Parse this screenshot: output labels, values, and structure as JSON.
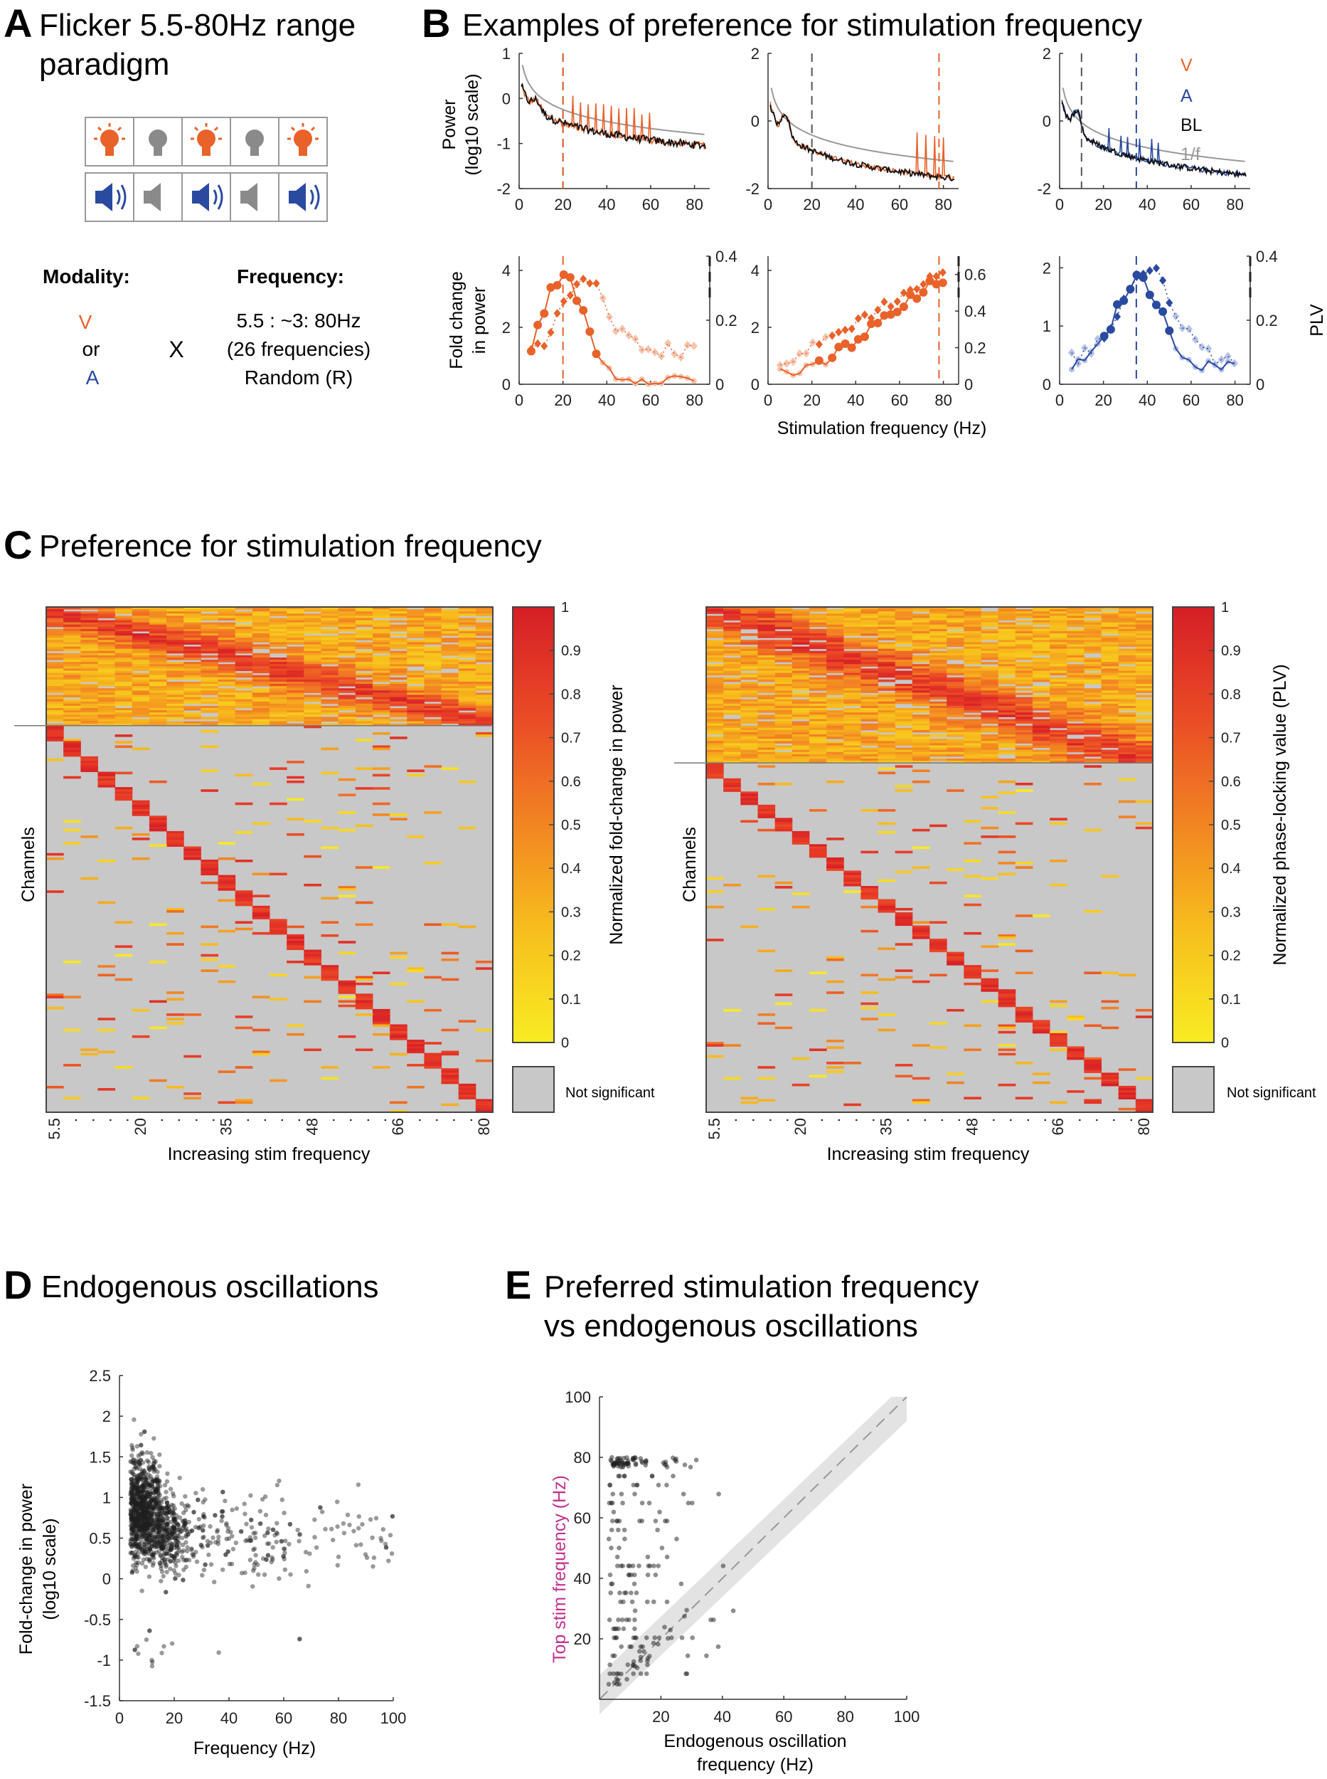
{
  "colors": {
    "visual": "#e8622a",
    "auditory": "#2a4aa0",
    "baseline": "#111111",
    "one_over_f": "#999999",
    "not_significant": "#c8c8c8",
    "magenta": "#c2328e"
  },
  "panelA": {
    "letter": "A",
    "title_line1": "Flicker 5.5-80Hz range",
    "title_line2": "paradigm",
    "modality_label": "Modality:",
    "frequency_label": "Frequency:",
    "modality_v": "V",
    "modality_or": "or",
    "modality_a": "A",
    "times": "X",
    "freq_line1": "5.5 : ~3: 80Hz",
    "freq_line2": "(26 frequencies)",
    "freq_line3": "Random (R)"
  },
  "panelB": {
    "letter": "B",
    "title": "Examples of preference for stimulation frequency",
    "ylabel_top_line1": "Power",
    "ylabel_top_line2": "(log10 scale)",
    "ylabel_bottom_line1": "Fold change",
    "ylabel_bottom_line2": "in power",
    "ylabel_right": "PLV",
    "xlabel": "Stimulation frequency (Hz)",
    "legend": [
      "V",
      "A",
      "BL",
      "1/f"
    ],
    "top_plots": [
      {
        "ylim": [
          -2,
          1
        ],
        "yticks": [
          "1",
          "0",
          "-1",
          "-2"
        ],
        "xticks": [
          "0",
          "20",
          "40",
          "60",
          "80"
        ]
      },
      {
        "ylim": [
          -2,
          2
        ],
        "yticks": [
          "2",
          "0",
          "-2"
        ],
        "xticks": [
          "0",
          "20",
          "40",
          "60",
          "80"
        ]
      },
      {
        "ylim": [
          -2,
          2
        ],
        "yticks": [
          "2",
          "0",
          "-2"
        ],
        "xticks": [
          "0",
          "20",
          "40",
          "60",
          "80"
        ]
      }
    ],
    "bottom_plots": [
      {
        "yticks_left": [
          "4",
          "2",
          "0"
        ],
        "yticks_right": [
          "0.4",
          "0.2",
          "0"
        ],
        "xticks": [
          "0",
          "20",
          "40",
          "60",
          "80"
        ]
      },
      {
        "yticks_left": [
          "4",
          "2",
          "0"
        ],
        "yticks_right": [
          "0.6",
          "0.4",
          "0.2",
          "0"
        ],
        "xticks": [
          "0",
          "20",
          "40",
          "60",
          "80"
        ]
      },
      {
        "yticks_left": [
          "2",
          "1",
          "0"
        ],
        "yticks_right": [
          "0.4",
          "0.2",
          "0"
        ],
        "xticks": [
          "0",
          "20",
          "40",
          "60",
          "80"
        ]
      }
    ]
  },
  "panelC": {
    "letter": "C",
    "title": "Preference for stimulation frequency",
    "ylabel": "Channels",
    "xlabel": "Increasing stim frequency",
    "xticks": [
      "5.5",
      ".",
      ".",
      ".",
      ".",
      "20",
      ".",
      ".",
      ".",
      ".",
      "35",
      ".",
      ".",
      ".",
      ".",
      "48",
      ".",
      ".",
      ".",
      ".",
      "66",
      ".",
      ".",
      ".",
      ".",
      "80"
    ],
    "colorbar_ticks": [
      "1",
      "0.9",
      "0.8",
      "0.7",
      "0.6",
      "0.5",
      "0.4",
      "0.3",
      "0.2",
      "0.1",
      "0"
    ],
    "colorbar_label_left": "Normalized fold-change in power",
    "colorbar_label_right": "Normalized phase-locking value (PLV)",
    "not_significant": "Not significant"
  },
  "panelD": {
    "letter": "D",
    "title": "Endogenous oscillations",
    "ylabel_line1": "Fold-change in power",
    "ylabel_line2": "(log10 scale)",
    "xlabel": "Frequency (Hz)",
    "yticks": [
      "2.5",
      "2",
      "1.5",
      "1",
      "0.5",
      "0",
      "-0.5",
      "-1",
      "-1.5"
    ],
    "xticks": [
      "0",
      "20",
      "40",
      "60",
      "80",
      "100"
    ]
  },
  "panelE": {
    "letter": "E",
    "title_line1": "Preferred stimulation frequency",
    "title_line2": "vs endogenous oscillations",
    "ylabel": "Top stim frequency (Hz)",
    "xlabel_line1": "Endogenous oscillation",
    "xlabel_line2": "frequency (Hz)",
    "yticks": [
      "100",
      "80",
      "60",
      "40",
      "20"
    ],
    "xticks": [
      "20",
      "40",
      "60",
      "80",
      "100"
    ]
  }
}
